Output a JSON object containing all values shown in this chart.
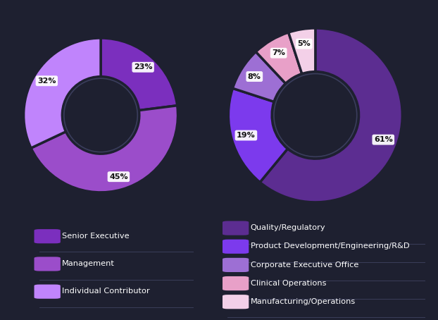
{
  "bg_color": "#1e2030",
  "text_color": "#ffffff",
  "left_donut": {
    "values": [
      23,
      45,
      32
    ],
    "colors": [
      "#7b2fbe",
      "#9b4dca",
      "#c084fc"
    ],
    "pct_labels": [
      "23%",
      "45%",
      "32%"
    ],
    "start_angle": 90
  },
  "right_donut": {
    "values": [
      61,
      19,
      8,
      7,
      5
    ],
    "colors": [
      "#5c2d91",
      "#7c3aed",
      "#9d6fd4",
      "#e8a0c8",
      "#f3d0e8"
    ],
    "pct_labels": [
      "61%",
      "19%",
      "8%",
      "7%",
      "5%"
    ],
    "start_angle": 90
  },
  "left_legend": [
    {
      "label": "Senior Executive",
      "color": "#7b2fbe"
    },
    {
      "label": "Management",
      "color": "#9b4dca"
    },
    {
      "label": "Individual Contributor",
      "color": "#c084fc"
    }
  ],
  "right_legend": [
    {
      "label": "Quality/Regulatory",
      "color": "#5c2d91"
    },
    {
      "label": "Product Development/Engineering/R&D",
      "color": "#7c3aed"
    },
    {
      "label": "Corporate Executive Office",
      "color": "#9d6fd4"
    },
    {
      "label": "Clinical Operations",
      "color": "#e8a0c8"
    },
    {
      "label": "Manufacturing/Operations",
      "color": "#f3d0e8"
    }
  ],
  "divider_color": "#3a3d5a",
  "inner_ring_color": "#3a3d5c"
}
